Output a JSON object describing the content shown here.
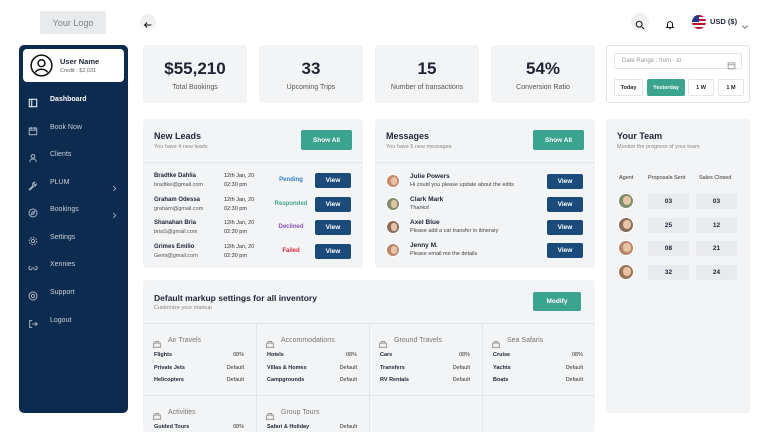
{
  "logo": "Your Logo",
  "header": {
    "currency": "USD ($)"
  },
  "sidebar": {
    "user": {
      "name": "User Name",
      "credit": "Credit : $2,031"
    },
    "menu": [
      "Dashboard",
      "Book Now",
      "Clients",
      "PLUM",
      "Bookings",
      "Settings",
      "Xennies",
      "Support",
      "Logout"
    ]
  },
  "stats": [
    {
      "value": "$55,210",
      "label": "Total Bookings"
    },
    {
      "value": "33",
      "label": "Upcoming Trips"
    },
    {
      "value": "15",
      "label": "Number of transactions"
    },
    {
      "value": "54%",
      "label": "Conversion Ratio"
    }
  ],
  "date_filter": {
    "placeholder": "Date Range : from - to",
    "options": [
      "Today",
      "Yesterday",
      "1 W",
      "1 M"
    ]
  },
  "leads": {
    "title": "New Leads",
    "subtitle": "You have 4 new leads",
    "action": "Show All",
    "row_action": "View",
    "rows": [
      {
        "name": "Bradtke Dahlia",
        "email": "bradtke@gmail.com",
        "date": "12th Jan, 20",
        "time": "02:30 pm",
        "status": "Pending"
      },
      {
        "name": "Graham Odessa",
        "email": "graham@gmail.com",
        "date": "12th Jan, 20",
        "time": "02:30 pm",
        "status": "Responded"
      },
      {
        "name": "Shanahan Bria",
        "email": "briaS@gmail.com",
        "date": "12th Jan, 20",
        "time": "02:30 pm",
        "status": "Declined"
      },
      {
        "name": "Grimes Emilio",
        "email": "Gemi@gmail.com",
        "date": "12th Jan, 20",
        "time": "02:30 pm",
        "status": "Failed"
      }
    ]
  },
  "messages": {
    "title": "Messages",
    "subtitle": "You have 5 new messages",
    "action": "Show All",
    "row_action": "View",
    "rows": [
      {
        "name": "Julie Powers",
        "text": "Hi could you please update about the edits"
      },
      {
        "name": "Clark Mark",
        "text": "Thanks!"
      },
      {
        "name": "Axel Blue",
        "text": "Please add a car transfer in itinerary"
      },
      {
        "name": "Jenny M.",
        "text": "Please email me the details"
      }
    ]
  },
  "team": {
    "title": "Your Team",
    "subtitle": "Monitor the progress of your team",
    "columns": [
      "Agent",
      "Proposals Sent",
      "Sales Closed"
    ],
    "rows": [
      [
        "03",
        "03"
      ],
      [
        "25",
        "12"
      ],
      [
        "08",
        "21"
      ],
      [
        "32",
        "24"
      ]
    ]
  },
  "markup": {
    "title": "Default markup settings for all inventory",
    "subtitle": "Customize your markup",
    "action": "Modify",
    "groups": [
      {
        "name": "Air Travels",
        "items": [
          [
            "Flights",
            "08%"
          ],
          [
            "Private Jets",
            "Default"
          ],
          [
            "Helicopters",
            "Default"
          ]
        ]
      },
      {
        "name": "Accommodations",
        "items": [
          [
            "Hotels",
            "08%"
          ],
          [
            "Villas & Homes",
            "Default"
          ],
          [
            "Campgrounds",
            "Default"
          ]
        ]
      },
      {
        "name": "Ground Travels",
        "items": [
          [
            "Cars",
            "08%"
          ],
          [
            "Transfers",
            "Default"
          ],
          [
            "RV Rentals",
            "Default"
          ]
        ]
      },
      {
        "name": "Sea Safaris",
        "items": [
          [
            "Cruise",
            "08%"
          ],
          [
            "Yachts",
            "Default"
          ],
          [
            "Boats",
            "Default"
          ]
        ]
      },
      {
        "name": "Activities",
        "items": [
          [
            "Guided Tours",
            "08%"
          ]
        ]
      },
      {
        "name": "Group Tours",
        "items": [
          [
            "Safari & Holiday",
            "Default"
          ]
        ]
      }
    ]
  }
}
